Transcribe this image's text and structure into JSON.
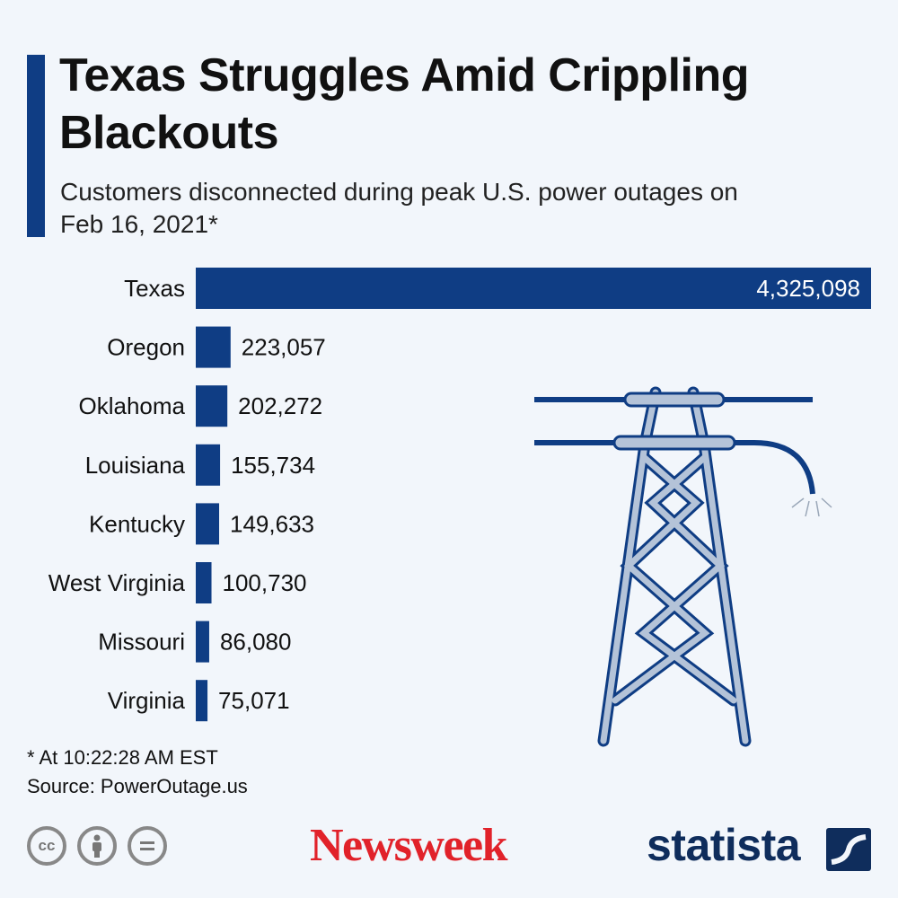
{
  "header": {
    "title": "Texas Struggles Amid Crippling Blackouts",
    "subtitle": "Customers disconnected during peak U.S. power outages on Feb 16, 2021*"
  },
  "chart_data": {
    "type": "bar",
    "orientation": "horizontal",
    "categories": [
      "Texas",
      "Oregon",
      "Oklahoma",
      "Louisiana",
      "Kentucky",
      "West Virginia",
      "Missouri",
      "Virginia"
    ],
    "values": [
      4325098,
      223057,
      202272,
      155734,
      149633,
      100730,
      86080,
      75071
    ],
    "value_labels": [
      "4,325,098",
      "223,057",
      "202,272",
      "155,734",
      "149,633",
      "100,730",
      "86,080",
      "75,071"
    ],
    "title": "Texas Struggles Amid Crippling Blackouts",
    "subtitle": "Customers disconnected during peak U.S. power outages on Feb 16, 2021*",
    "xlabel": "",
    "ylabel": "",
    "xlim": [
      0,
      4325098
    ],
    "grid": false,
    "legend": "none",
    "bar_color": "#0f3d84"
  },
  "footer": {
    "footnote": "* At 10:22:28 AM EST",
    "source": "Source: PowerOutage.us",
    "cc_icons": [
      "cc-icon",
      "attribution-icon",
      "no-derivatives-icon"
    ],
    "newsweek": "Newsweek",
    "statista": "statista"
  },
  "colors": {
    "background": "#f2f6fb",
    "accent": "#0f3d84",
    "newsweek_red": "#e1222a",
    "statista_navy": "#0f2d5c"
  }
}
